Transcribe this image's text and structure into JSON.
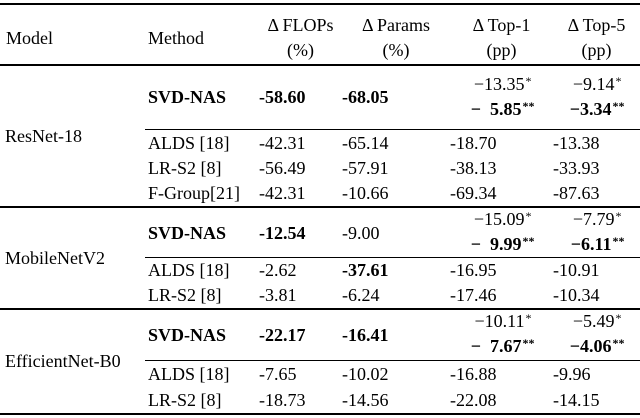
{
  "colors": {
    "text": "#000000",
    "background": "#ffffff",
    "rule": "#000000"
  },
  "table": {
    "header": {
      "model": "Model",
      "method": "Method",
      "cols": [
        {
          "l1": "Δ FLOPs",
          "l2": "(%)"
        },
        {
          "l1": "Δ Params",
          "l2": "(%)"
        },
        {
          "l1": "Δ Top-1",
          "l2": "(pp)"
        },
        {
          "l1": "Δ Top-5",
          "l2": "(pp)"
        }
      ]
    },
    "sections": [
      {
        "model": "ResNet-18",
        "svd": {
          "method": "SVD-NAS",
          "flops": "-58.60",
          "params": "-68.05",
          "top1": {
            "l1num": "−13.35",
            "l1sup": "*",
            "l2num": "− 5.85",
            "l2sup": "**"
          },
          "top5": {
            "l1num": "−9.14",
            "l1sup": "*",
            "l2num": "−3.34",
            "l2sup": "**"
          }
        },
        "rows": [
          {
            "method": "ALDS [18]",
            "flops": "-42.31",
            "params": "-65.14",
            "top1": "-18.70",
            "top5": "-13.38"
          },
          {
            "method": "LR-S2 [8]",
            "flops": "-56.49",
            "params": "-57.91",
            "top1": "-38.13",
            "top5": "-33.93"
          },
          {
            "method": "F-Group[21]",
            "flops": "-42.31",
            "params": "-10.66",
            "top1": "-69.34",
            "top5": "-87.63"
          }
        ]
      },
      {
        "model": "MobileNetV2",
        "svd": {
          "method": "SVD-NAS",
          "flops": "-12.54",
          "params": "-9.00",
          "top1": {
            "l1num": "−15.09",
            "l1sup": "*",
            "l2num": "− 9.99",
            "l2sup": "**"
          },
          "top5": {
            "l1num": "−7.79",
            "l1sup": "*",
            "l2num": "−6.11",
            "l2sup": "**"
          }
        },
        "rows": [
          {
            "method": "ALDS [18]",
            "flops": "-2.62",
            "params": "-37.61",
            "top1": "-16.95",
            "top5": "-10.91"
          },
          {
            "method": "LR-S2 [8]",
            "flops": "-3.81",
            "params": "-6.24",
            "top1": "-17.46",
            "top5": "-10.34"
          }
        ]
      },
      {
        "model": "EfficientNet-B0",
        "svd": {
          "method": "SVD-NAS",
          "flops": "-22.17",
          "params": "-16.41",
          "top1": {
            "l1num": "−10.11",
            "l1sup": "*",
            "l2num": "− 7.67",
            "l2sup": "**"
          },
          "top5": {
            "l1num": "−5.49",
            "l1sup": "*",
            "l2num": "−4.06",
            "l2sup": "**"
          }
        },
        "rows": [
          {
            "method": "ALDS [18]",
            "flops": "-7.65",
            "params": "-10.02",
            "top1": "-16.88",
            "top5": "-9.96"
          },
          {
            "method": "LR-S2 [8]",
            "flops": "-18.73",
            "params": "-14.56",
            "top1": "-22.08",
            "top5": "-14.15"
          }
        ]
      }
    ]
  }
}
